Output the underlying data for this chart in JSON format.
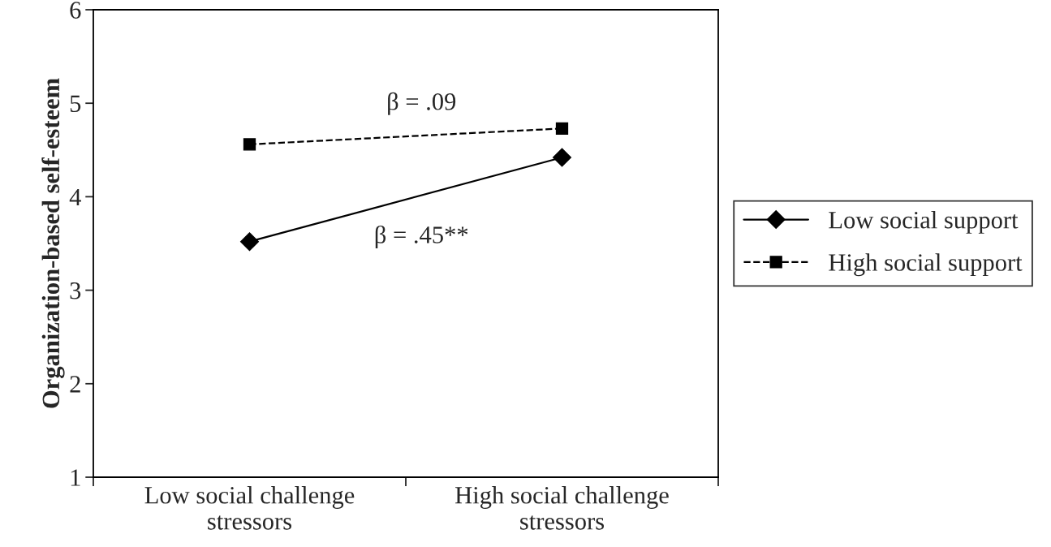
{
  "chart_data": {
    "type": "line",
    "ylabel": "Organization-based self-esteem",
    "categories": [
      "Low social challenge\nstressors",
      "High social challenge\nstressors"
    ],
    "series": [
      {
        "name": "Low social support",
        "color": "#000000",
        "values": [
          3.52,
          4.42
        ],
        "marker": "diamond",
        "line_style": "solid"
      },
      {
        "name": "High social support",
        "color": "#000000",
        "values": [
          4.56,
          4.73
        ],
        "marker": "square",
        "line_style": "dashed"
      }
    ],
    "annotations": [
      "β = .45**",
      "β = .09"
    ],
    "ylim": [
      1,
      6
    ],
    "yticks": [
      1,
      2,
      3,
      4,
      5,
      6
    ],
    "grid": false,
    "legend": "right"
  }
}
